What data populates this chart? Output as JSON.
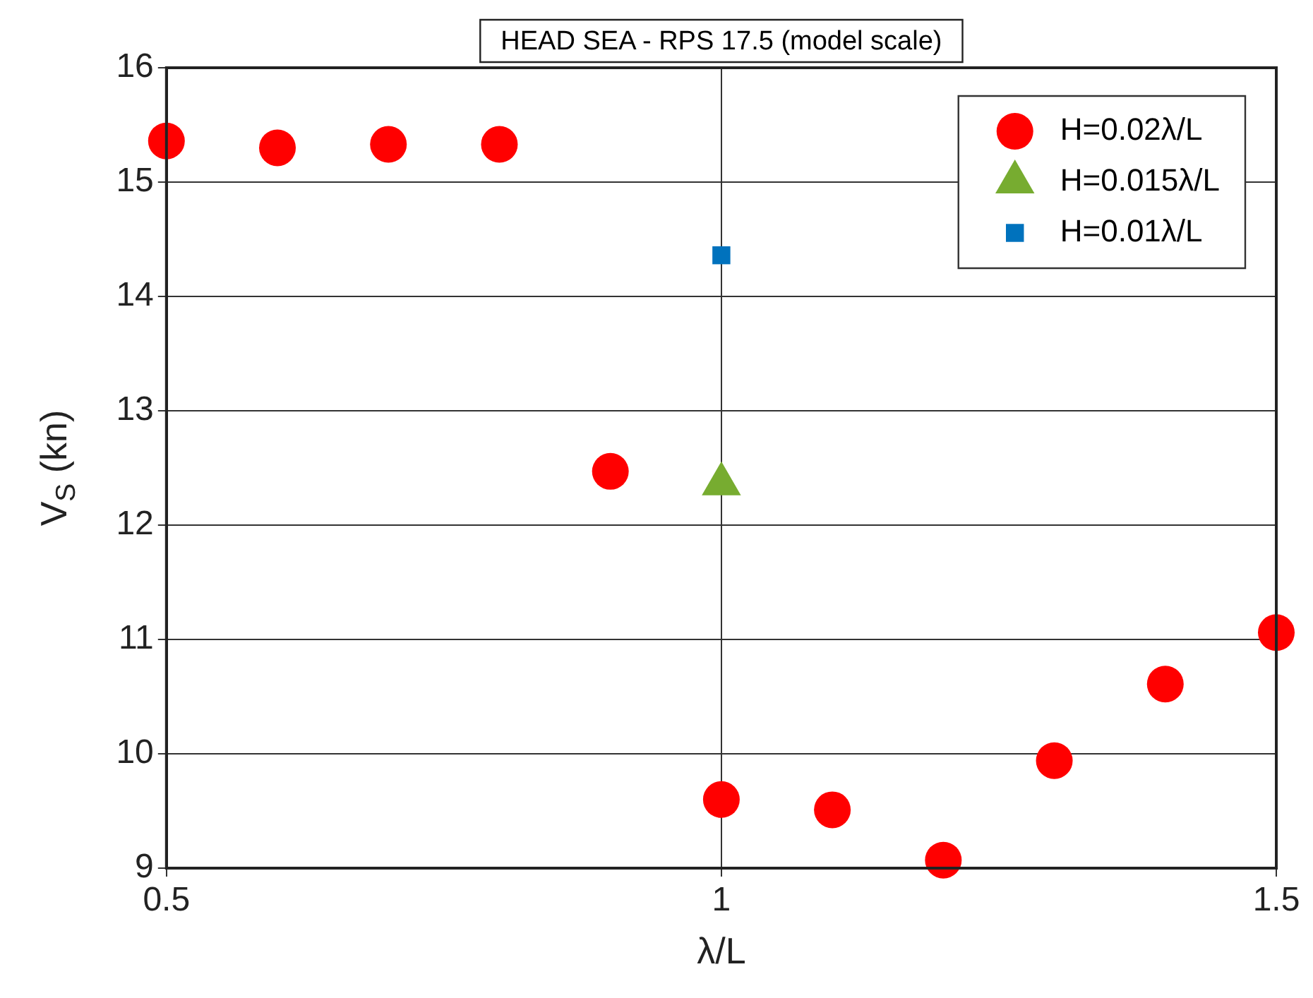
{
  "chart_data": {
    "type": "scatter",
    "title": "HEAD SEA - RPS 17.5 (model scale)",
    "xlabel": "λ/L",
    "ylabel": "V$_{S}$ (kn)",
    "xlim": [
      0.5,
      1.5
    ],
    "xticks": [
      0.5,
      1,
      1.5
    ],
    "ylim": [
      9,
      16
    ],
    "yticks": [
      9,
      10,
      11,
      12,
      13,
      14,
      15,
      16
    ],
    "grid": true,
    "legend": "top right",
    "series": [
      {
        "name": "H=0.02λ/L",
        "color": "#ff0000",
        "marker": "circle",
        "x": [
          0.5,
          0.6,
          0.7,
          0.8,
          0.9,
          1.0,
          1.1,
          1.2,
          1.3,
          1.4,
          1.5
        ],
        "values": [
          15.36,
          15.3,
          15.33,
          15.33,
          12.47,
          9.6,
          9.51,
          9.07,
          9.94,
          10.61,
          11.06
        ]
      },
      {
        "name": "H=0.015λ/L",
        "color": "#77ac30",
        "marker": "triangle",
        "x": [
          1.0
        ],
        "values": [
          12.36
        ]
      },
      {
        "name": "H=0.01λ/L",
        "color": "#0072bd",
        "marker": "square",
        "x": [
          1.0
        ],
        "values": [
          14.36
        ]
      }
    ]
  }
}
